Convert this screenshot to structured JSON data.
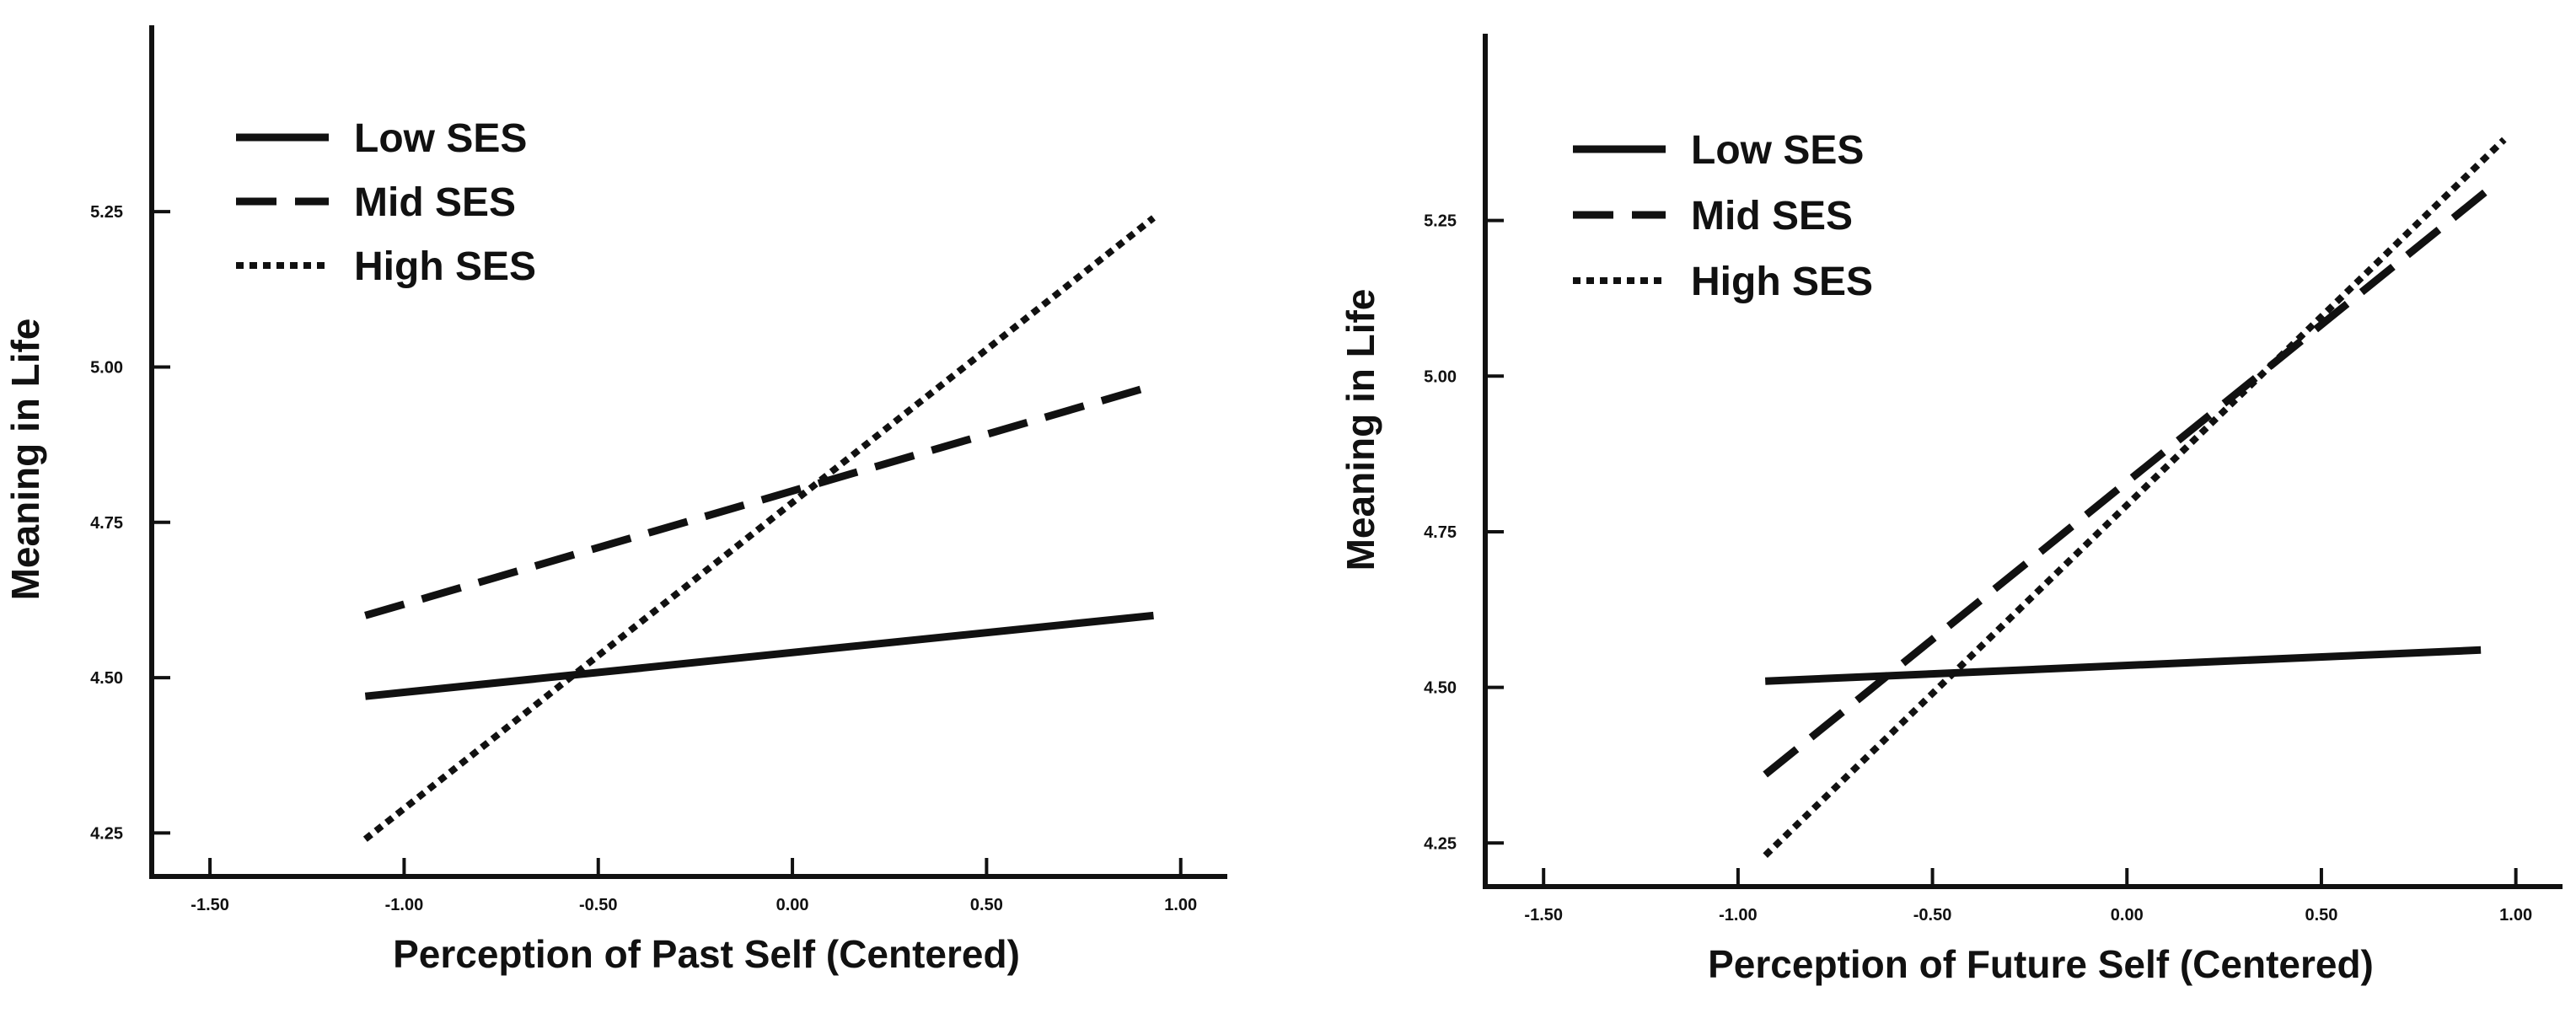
{
  "chart_data": [
    {
      "type": "line",
      "xlabel": "Perception of Past Self (Centered)",
      "ylabel": "Meaning in Life",
      "xlim": [
        -1.65,
        1.12
      ],
      "ylim": [
        4.18,
        5.55
      ],
      "x_ticks": [
        -1.5,
        -1.0,
        -0.5,
        0.0,
        0.5,
        1.0
      ],
      "x_tick_labels": [
        "-1.50",
        "-1.00",
        "-0.50",
        "0.00",
        "0.50",
        "1.00"
      ],
      "y_ticks": [
        4.25,
        4.5,
        4.75,
        5.0,
        5.25
      ],
      "y_tick_labels": [
        "4.25",
        "4.50",
        "4.75",
        "5.00",
        "5.25"
      ],
      "legend_position": "top-left",
      "series": [
        {
          "name": "Low SES",
          "style": "solid",
          "x": [
            -1.1,
            0.93
          ],
          "y": [
            4.47,
            4.6
          ]
        },
        {
          "name": "Mid SES",
          "style": "dashed",
          "x": [
            -1.1,
            0.93
          ],
          "y": [
            4.6,
            4.97
          ]
        },
        {
          "name": "High SES",
          "style": "dotted",
          "x": [
            -1.1,
            0.93
          ],
          "y": [
            4.24,
            5.24
          ]
        }
      ]
    },
    {
      "type": "line",
      "xlabel": "Perception of Future Self (Centered)",
      "ylabel": "Meaning in Life",
      "xlim": [
        -1.65,
        1.12
      ],
      "ylim": [
        4.18,
        5.55
      ],
      "x_ticks": [
        -1.5,
        -1.0,
        -0.5,
        0.0,
        0.5,
        1.0
      ],
      "x_tick_labels": [
        "-1.50",
        "-1.00",
        "-0.50",
        "0.00",
        "0.50",
        "1.00"
      ],
      "y_ticks": [
        4.25,
        4.5,
        4.75,
        5.0,
        5.25
      ],
      "y_tick_labels": [
        "4.25",
        "4.50",
        "4.75",
        "5.00",
        "5.25"
      ],
      "legend_position": "top-left",
      "series": [
        {
          "name": "Low SES",
          "style": "solid",
          "x": [
            -0.93,
            0.91
          ],
          "y": [
            4.51,
            4.56
          ]
        },
        {
          "name": "Mid SES",
          "style": "dashed",
          "x": [
            -0.93,
            0.95
          ],
          "y": [
            4.36,
            5.31
          ]
        },
        {
          "name": "High SES",
          "style": "dotted",
          "x": [
            -0.93,
            0.97
          ],
          "y": [
            4.23,
            5.38
          ]
        }
      ]
    }
  ]
}
